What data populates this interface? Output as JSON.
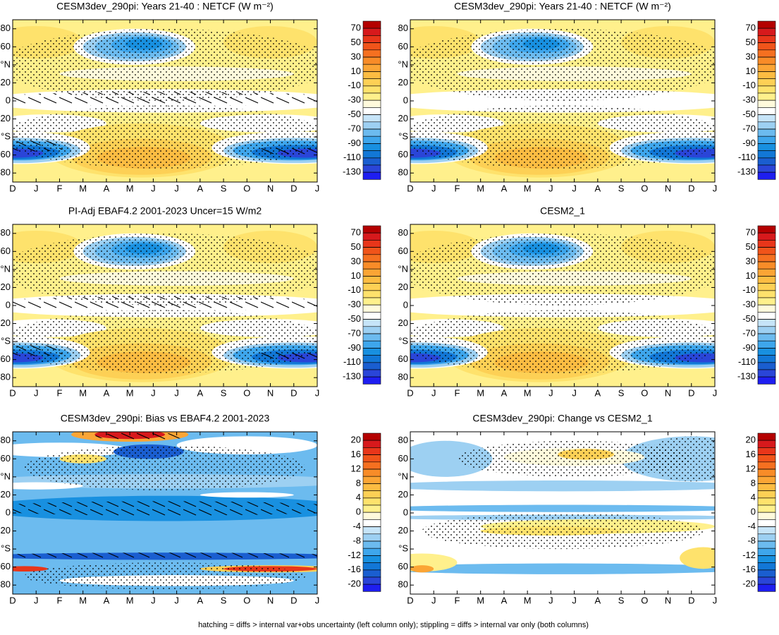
{
  "chart_data": [
    {
      "type": "contour",
      "title": "CESM3dev_290pi: Years 21-40 : NETCF (W m⁻²)",
      "x": [
        "D",
        "J",
        "F",
        "M",
        "A",
        "M",
        "J",
        "J",
        "A",
        "S",
        "O",
        "N",
        "D",
        "J"
      ],
      "ylim": [
        -90,
        90
      ],
      "yticks": [
        {
          "value": 80,
          "label": "80"
        },
        60,
        {
          "value": 40,
          "label": "°N"
        },
        20,
        0,
        {
          "value": -20,
          "label": "20"
        },
        {
          "value": -40,
          "label": "°S"
        },
        {
          "value": -60,
          "label": "60"
        },
        {
          "value": -80,
          "label": "80"
        }
      ],
      "colorbar": {
        "ticks": [
          70,
          50,
          30,
          10,
          -10,
          -30,
          -50,
          -70,
          -90,
          -110,
          -130
        ],
        "colors": [
          "#b40000",
          "#d7191c",
          "#e8361a",
          "#f0541a",
          "#f57020",
          "#f88c28",
          "#fba535",
          "#fcbc42",
          "#fdd055",
          "#fee26c",
          "#fff08c",
          "#fffadc",
          "#ffffff",
          "#c6e4f8",
          "#9dd0f2",
          "#6cbbef",
          "#3ea6ec",
          "#1890e0",
          "#1277d6",
          "#1a5ed0",
          "#2a45d8",
          "#1e1ef0"
        ]
      }
    },
    {
      "type": "contour",
      "title": "CESM3dev_290pi: Years 21-40 : NETCF (W m⁻²)",
      "x": [
        "D",
        "J",
        "F",
        "M",
        "A",
        "M",
        "J",
        "J",
        "A",
        "S",
        "O",
        "N",
        "D",
        "J"
      ],
      "ylim": [
        -90,
        90
      ],
      "yticks": [
        {
          "value": 80,
          "label": "80"
        },
        60,
        {
          "value": 40,
          "label": "°N"
        },
        20,
        0,
        {
          "value": -20,
          "label": "20"
        },
        {
          "value": -40,
          "label": "°S"
        },
        {
          "value": -60,
          "label": "60"
        },
        {
          "value": -80,
          "label": "80"
        }
      ],
      "colorbar": {
        "ticks": [
          70,
          50,
          30,
          10,
          -10,
          -30,
          -50,
          -70,
          -90,
          -110,
          -130
        ],
        "colors": [
          "#b40000",
          "#d7191c",
          "#e8361a",
          "#f0541a",
          "#f57020",
          "#f88c28",
          "#fba535",
          "#fcbc42",
          "#fdd055",
          "#fee26c",
          "#fff08c",
          "#fffadc",
          "#ffffff",
          "#c6e4f8",
          "#9dd0f2",
          "#6cbbef",
          "#3ea6ec",
          "#1890e0",
          "#1277d6",
          "#1a5ed0",
          "#2a45d8",
          "#1e1ef0"
        ]
      }
    },
    {
      "type": "contour",
      "title": "PI-Adj EBAF4.2 2001-2023 Uncer=15 W/m2",
      "x": [
        "D",
        "J",
        "F",
        "M",
        "A",
        "M",
        "J",
        "J",
        "A",
        "S",
        "O",
        "N",
        "D",
        "J"
      ],
      "ylim": [
        -90,
        90
      ],
      "yticks": [
        {
          "value": 80,
          "label": "80"
        },
        60,
        {
          "value": 40,
          "label": "°N"
        },
        20,
        0,
        {
          "value": -20,
          "label": "20"
        },
        {
          "value": -40,
          "label": "°S"
        },
        {
          "value": -60,
          "label": "60"
        },
        {
          "value": -80,
          "label": "80"
        }
      ],
      "colorbar": {
        "ticks": [
          70,
          50,
          30,
          10,
          -10,
          -30,
          -50,
          -70,
          -90,
          -110,
          -130
        ],
        "colors": [
          "#b40000",
          "#d7191c",
          "#e8361a",
          "#f0541a",
          "#f57020",
          "#f88c28",
          "#fba535",
          "#fcbc42",
          "#fdd055",
          "#fee26c",
          "#fff08c",
          "#fffadc",
          "#ffffff",
          "#c6e4f8",
          "#9dd0f2",
          "#6cbbef",
          "#3ea6ec",
          "#1890e0",
          "#1277d6",
          "#1a5ed0",
          "#2a45d8",
          "#1e1ef0"
        ]
      }
    },
    {
      "type": "contour",
      "title": "CESM2_1",
      "x": [
        "D",
        "J",
        "F",
        "M",
        "A",
        "M",
        "J",
        "J",
        "A",
        "S",
        "O",
        "N",
        "D",
        "J"
      ],
      "ylim": [
        -90,
        90
      ],
      "yticks": [
        {
          "value": 80,
          "label": "80"
        },
        60,
        {
          "value": 40,
          "label": "°N"
        },
        20,
        0,
        {
          "value": -20,
          "label": "20"
        },
        {
          "value": -40,
          "label": "°S"
        },
        {
          "value": -60,
          "label": "60"
        },
        {
          "value": -80,
          "label": "80"
        }
      ],
      "colorbar": {
        "ticks": [
          70,
          50,
          30,
          10,
          -10,
          -30,
          -50,
          -70,
          -90,
          -110,
          -130
        ],
        "colors": [
          "#b40000",
          "#d7191c",
          "#e8361a",
          "#f0541a",
          "#f57020",
          "#f88c28",
          "#fba535",
          "#fcbc42",
          "#fdd055",
          "#fee26c",
          "#fff08c",
          "#fffadc",
          "#ffffff",
          "#c6e4f8",
          "#9dd0f2",
          "#6cbbef",
          "#3ea6ec",
          "#1890e0",
          "#1277d6",
          "#1a5ed0",
          "#2a45d8",
          "#1e1ef0"
        ]
      }
    },
    {
      "type": "contour",
      "title": "CESM3dev_290pi: Bias vs EBAF4.2 2001-2023",
      "x": [
        "D",
        "J",
        "F",
        "M",
        "A",
        "M",
        "J",
        "J",
        "A",
        "S",
        "O",
        "N",
        "D",
        "J"
      ],
      "ylim": [
        -90,
        90
      ],
      "yticks": [
        {
          "value": 80,
          "label": "80"
        },
        60,
        {
          "value": 40,
          "label": "°N"
        },
        20,
        0,
        {
          "value": -20,
          "label": "20"
        },
        {
          "value": -40,
          "label": "°S"
        },
        {
          "value": -60,
          "label": "60"
        },
        {
          "value": -80,
          "label": "80"
        }
      ],
      "colorbar": {
        "ticks": [
          20,
          16,
          12,
          8,
          4,
          0,
          -4,
          -8,
          -12,
          -16,
          -20
        ],
        "colors": [
          "#b40000",
          "#d7191c",
          "#e8361a",
          "#f0541a",
          "#f57020",
          "#f88c28",
          "#fba535",
          "#fcbc42",
          "#fdd055",
          "#fee26c",
          "#fff08c",
          "#fffadc",
          "#ffffff",
          "#c6e4f8",
          "#9dd0f2",
          "#6cbbef",
          "#3ea6ec",
          "#1890e0",
          "#1277d6",
          "#1a5ed0",
          "#2a45d8",
          "#1e1ef0"
        ]
      }
    },
    {
      "type": "contour",
      "title": "CESM3dev_290pi: Change vs CESM2_1",
      "x": [
        "D",
        "J",
        "F",
        "M",
        "A",
        "M",
        "J",
        "J",
        "A",
        "S",
        "O",
        "N",
        "D",
        "J"
      ],
      "ylim": [
        -90,
        90
      ],
      "yticks": [
        {
          "value": 80,
          "label": "80"
        },
        60,
        {
          "value": 40,
          "label": "°N"
        },
        20,
        0,
        {
          "value": -20,
          "label": "20"
        },
        {
          "value": -40,
          "label": "°S"
        },
        {
          "value": -60,
          "label": "60"
        },
        {
          "value": -80,
          "label": "80"
        }
      ],
      "colorbar": {
        "ticks": [
          20,
          16,
          12,
          8,
          4,
          0,
          -4,
          -8,
          -12,
          -16,
          -20
        ],
        "colors": [
          "#b40000",
          "#d7191c",
          "#e8361a",
          "#f0541a",
          "#f57020",
          "#f88c28",
          "#fba535",
          "#fcbc42",
          "#fdd055",
          "#fee26c",
          "#fff08c",
          "#fffadc",
          "#ffffff",
          "#c6e4f8",
          "#9dd0f2",
          "#6cbbef",
          "#3ea6ec",
          "#1890e0",
          "#1277d6",
          "#1a5ed0",
          "#2a45d8",
          "#1e1ef0"
        ]
      }
    }
  ],
  "footnote": "hatching = diffs > internal var+obs uncertainty (left column only); stippling = diffs > internal var only (both columns)"
}
